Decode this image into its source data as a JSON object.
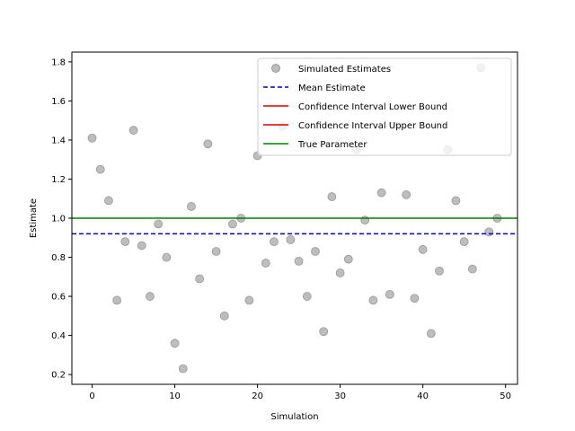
{
  "chart_data": {
    "type": "scatter",
    "xlabel": "Simulation",
    "ylabel": "Estimate",
    "xlim": [
      -2.45,
      51.45
    ],
    "ylim": [
      0.15,
      1.85
    ],
    "xticks": [
      0,
      10,
      20,
      30,
      40,
      50
    ],
    "yticks": [
      0.2,
      0.4,
      0.6,
      0.8,
      1.0,
      1.2,
      1.4,
      1.6,
      1.8
    ],
    "ytick_labels": [
      "0.2",
      "0.4",
      "0.6",
      "0.8",
      "1.0",
      "1.2",
      "1.4",
      "1.6",
      "1.8"
    ],
    "grid": false,
    "legend_position": "top-right",
    "colors": {
      "points": "#999999",
      "mean": "#0000cc",
      "ci": "#e00000",
      "true": "#008000"
    },
    "series": [
      {
        "name": "Simulated Estimates",
        "kind": "scatter",
        "x": [
          0,
          1,
          2,
          3,
          4,
          5,
          6,
          7,
          8,
          9,
          10,
          11,
          12,
          13,
          14,
          15,
          16,
          17,
          18,
          19,
          20,
          21,
          22,
          23,
          24,
          25,
          26,
          27,
          28,
          29,
          30,
          31,
          32,
          33,
          34,
          35,
          36,
          37,
          38,
          39,
          40,
          41,
          42,
          43,
          44,
          45,
          46,
          47,
          48,
          49
        ],
        "y": [
          1.41,
          1.25,
          1.09,
          0.58,
          0.88,
          1.45,
          0.86,
          0.6,
          0.97,
          0.8,
          0.36,
          0.23,
          1.06,
          0.69,
          1.38,
          0.83,
          0.5,
          0.97,
          1.0,
          0.58,
          1.32,
          0.77,
          0.88,
          1.47,
          0.89,
          0.78,
          0.6,
          0.83,
          0.42,
          1.11,
          0.72,
          0.79,
          1.35,
          0.99,
          0.58,
          1.13,
          0.61,
          1.47,
          1.12,
          0.59,
          0.84,
          0.41,
          0.73,
          1.35,
          1.09,
          0.88,
          0.74,
          1.77,
          0.93,
          1.0
        ]
      },
      {
        "name": "Mean Estimate",
        "kind": "hline",
        "y": 0.92,
        "style": "dashed"
      },
      {
        "name": "Confidence Interval Lower Bound",
        "kind": "hline-legend-only"
      },
      {
        "name": "Confidence Interval Upper Bound",
        "kind": "hline-legend-only"
      },
      {
        "name": "True Parameter",
        "kind": "hline",
        "y": 1.0,
        "style": "solid"
      }
    ]
  }
}
